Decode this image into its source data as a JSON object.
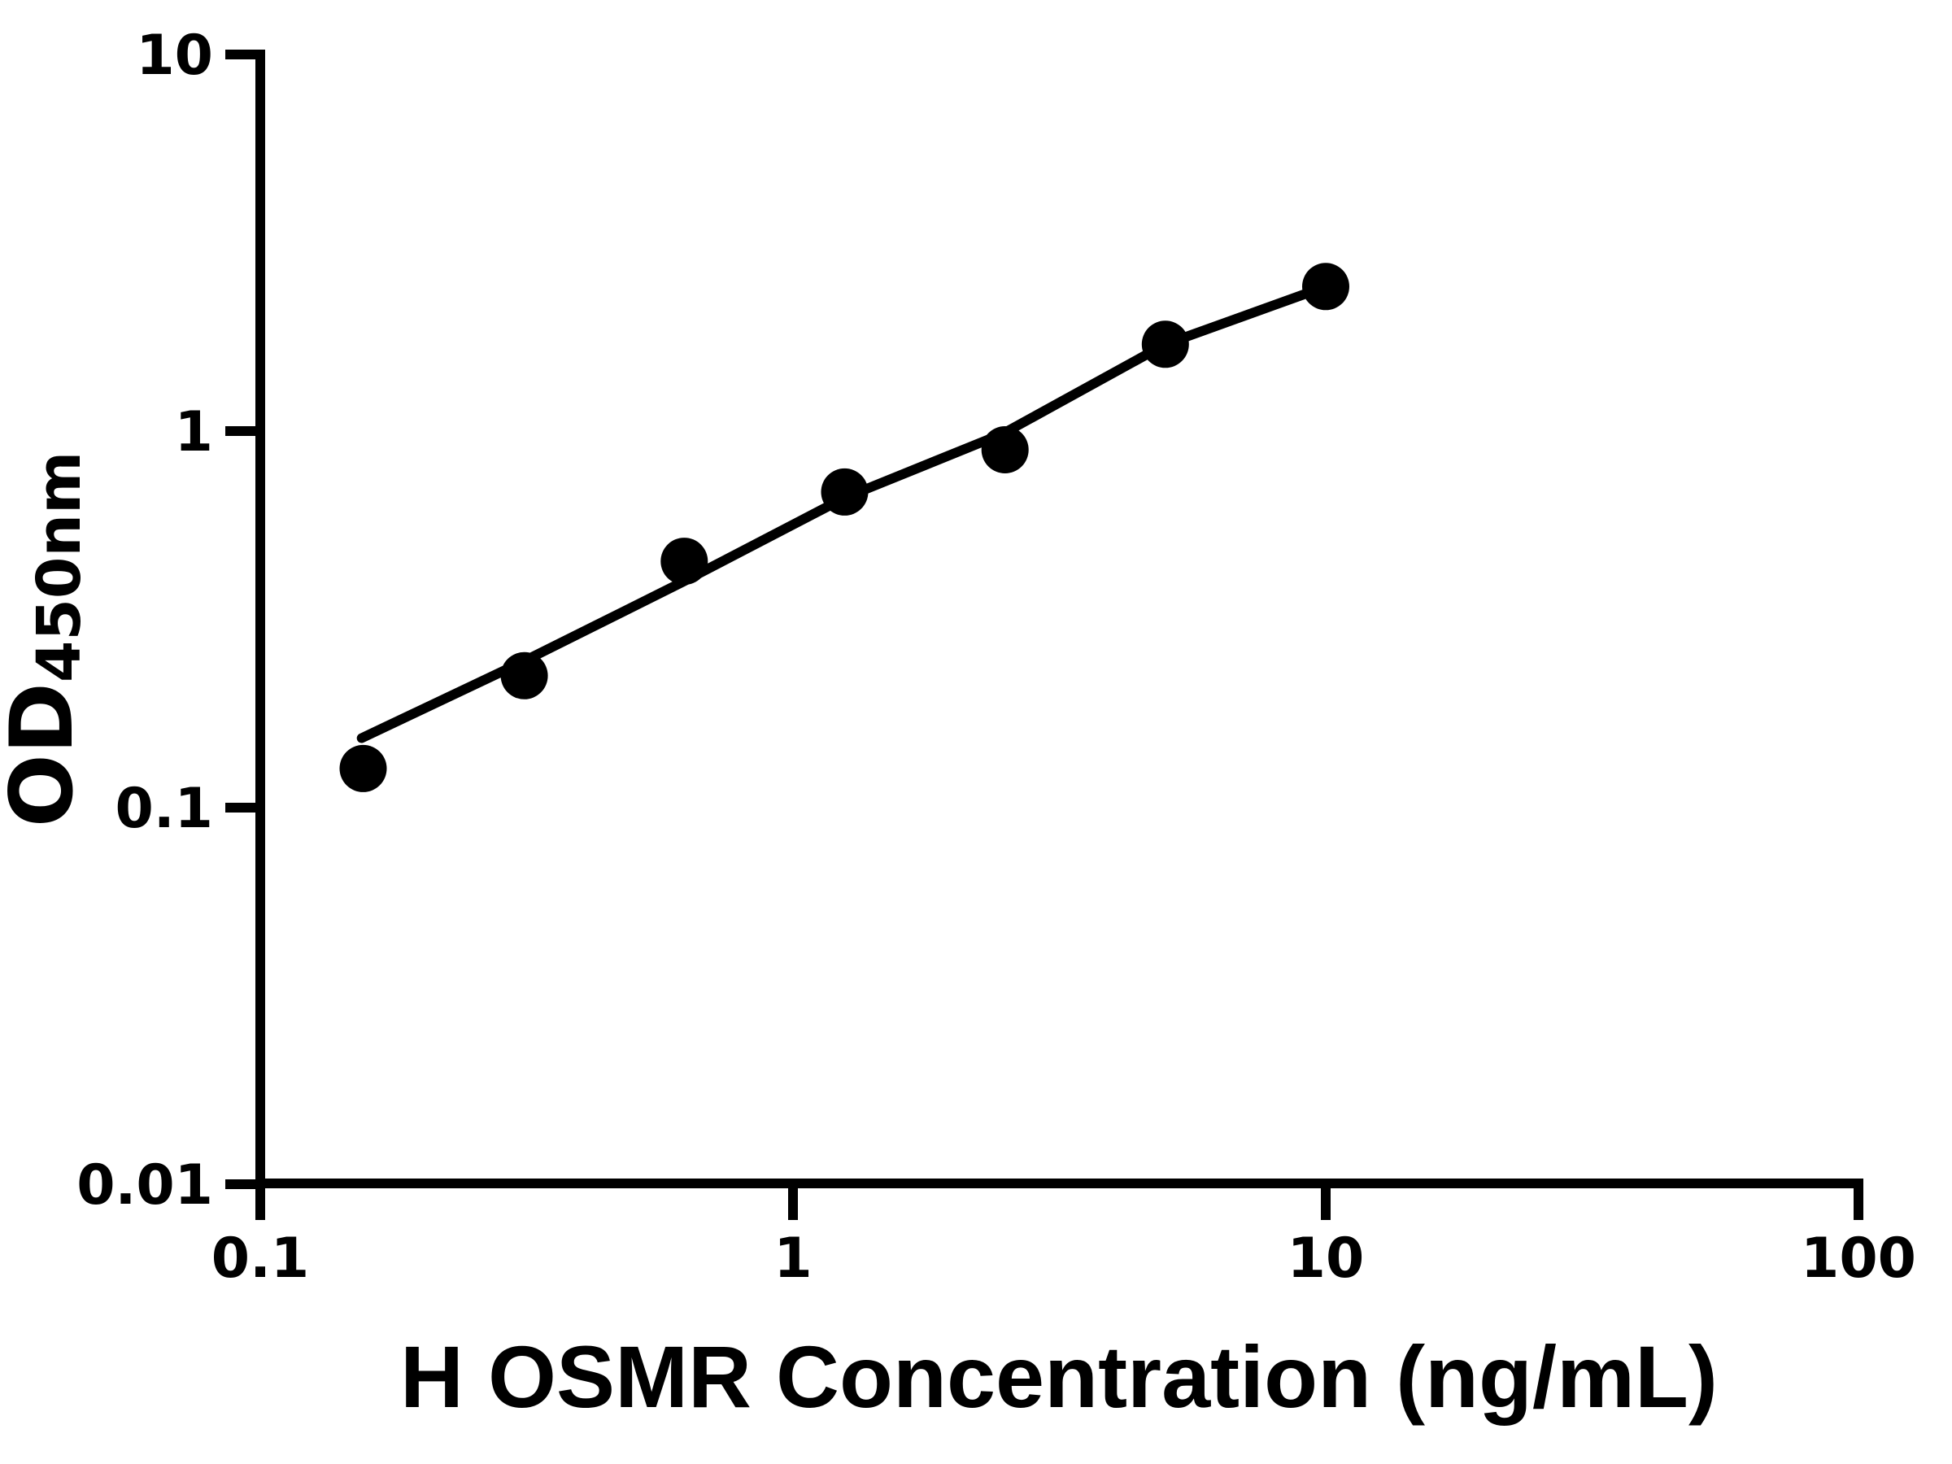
{
  "chart_data": {
    "type": "scatter",
    "title": "",
    "xlabel": "H OSMR Concentration (ng/mL)",
    "ylabel_main": "OD",
    "ylabel_sub": "450nm",
    "x_scale": "log",
    "y_scale": "log",
    "xlim": [
      0.1,
      100
    ],
    "ylim": [
      0.01,
      10
    ],
    "grid": false,
    "legend": "none",
    "x_ticks": {
      "values": [
        0.1,
        1,
        10,
        100
      ],
      "labels": [
        "0.1",
        "1",
        "10",
        "100"
      ]
    },
    "y_ticks": {
      "values": [
        10,
        1,
        0.1,
        0.01
      ],
      "labels": [
        "10",
        "1",
        "0.1",
        "0.01"
      ]
    },
    "series": [
      {
        "name": "standard-curve-points",
        "marker": "filled-circle",
        "color": "#000000",
        "points": [
          {
            "x": 0.156,
            "y": 0.127
          },
          {
            "x": 0.313,
            "y": 0.224
          },
          {
            "x": 0.625,
            "y": 0.451
          },
          {
            "x": 1.25,
            "y": 0.689
          },
          {
            "x": 2.5,
            "y": 0.892
          },
          {
            "x": 5,
            "y": 1.7
          },
          {
            "x": 10,
            "y": 2.42
          }
        ]
      }
    ],
    "fit_line": {
      "name": "fitted-standard-curve",
      "color": "#000000",
      "points": [
        {
          "x": 0.155,
          "y": 0.153
        },
        {
          "x": 0.311,
          "y": 0.244
        },
        {
          "x": 0.622,
          "y": 0.398
        },
        {
          "x": 1.25,
          "y": 0.665
        },
        {
          "x": 2.48,
          "y": 0.985
        },
        {
          "x": 5,
          "y": 1.7
        },
        {
          "x": 10,
          "y": 2.42
        }
      ]
    },
    "colors": {
      "background": "#ffffff",
      "axis": "#000000",
      "marker": "#000000",
      "line": "#000000",
      "text": "#000000"
    }
  }
}
